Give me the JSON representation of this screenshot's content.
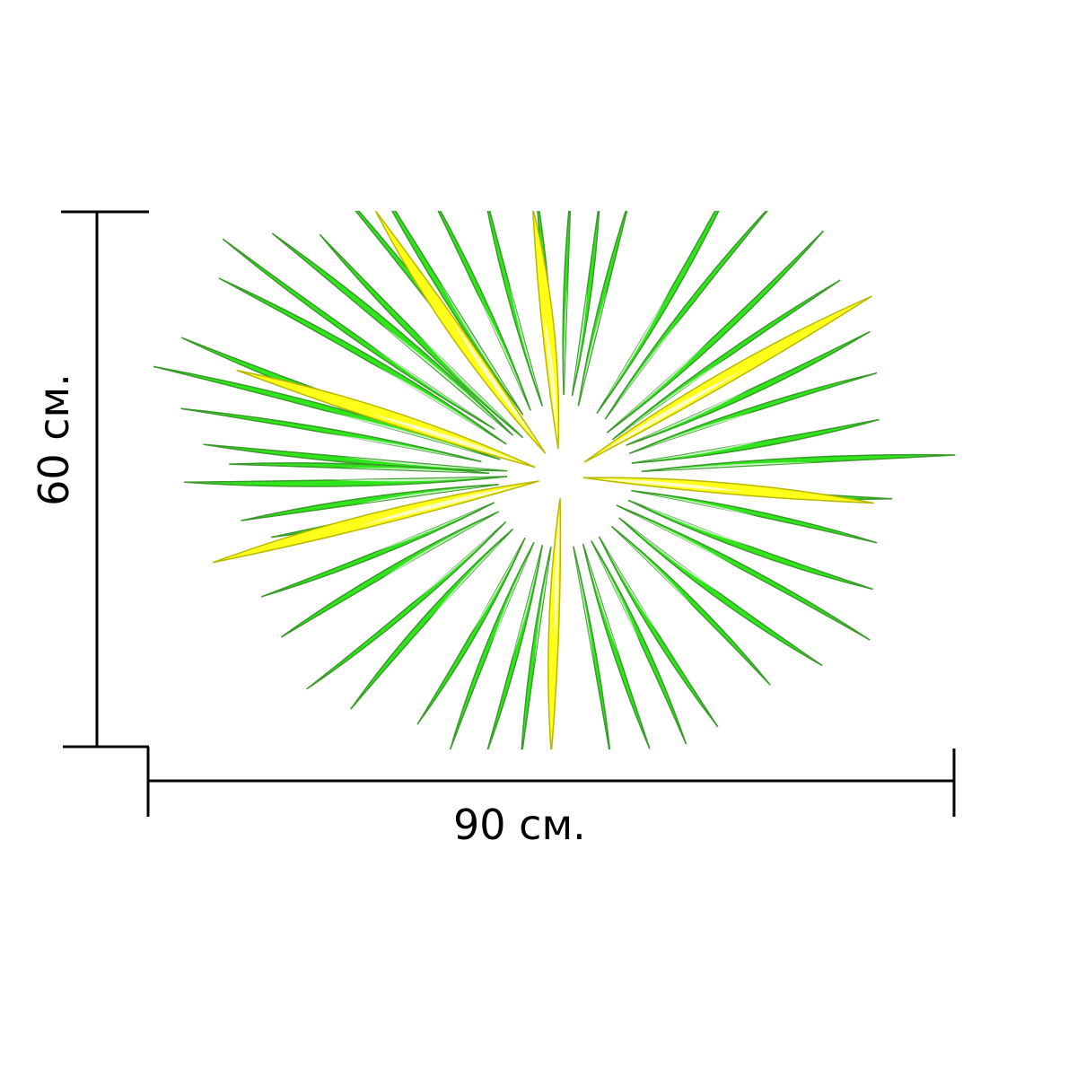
{
  "dimensions": {
    "width_label": "90 см.",
    "height_label": "60 см."
  },
  "artwork": {
    "subject": "firework-burst",
    "colors": {
      "green_fill": "#2ee61a",
      "green_stroke": "#3a9a2a",
      "yellow_fill": "#ffff1a",
      "yellow_stroke": "#b8b800",
      "highlight": "#ffffff",
      "dimension_line": "#000000"
    }
  }
}
